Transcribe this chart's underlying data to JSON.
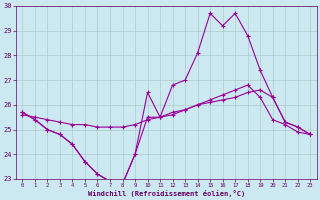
{
  "xlabel": "Windchill (Refroidissement éolien,°C)",
  "bg_color": "#cce8f0",
  "grid_color": "#aacccc",
  "line_color": "#990099",
  "xlim": [
    -0.5,
    23.5
  ],
  "ylim": [
    23,
    30
  ],
  "yticks": [
    23,
    24,
    25,
    26,
    27,
    28,
    29,
    30
  ],
  "xticks": [
    0,
    1,
    2,
    3,
    4,
    5,
    6,
    7,
    8,
    9,
    10,
    11,
    12,
    13,
    14,
    15,
    16,
    17,
    18,
    19,
    20,
    21,
    22,
    23
  ],
  "line1_y": [
    25.7,
    25.4,
    25.0,
    24.8,
    24.4,
    23.7,
    23.2,
    22.9,
    22.8,
    24.0,
    25.5,
    25.5,
    25.6,
    25.8,
    26.0,
    26.2,
    26.4,
    26.6,
    26.8,
    26.3,
    25.4,
    25.2,
    24.9,
    24.8
  ],
  "line2_y": [
    25.6,
    25.5,
    25.4,
    25.3,
    25.2,
    25.2,
    25.1,
    25.1,
    25.1,
    25.2,
    25.4,
    25.5,
    25.7,
    25.8,
    26.0,
    26.1,
    26.2,
    26.3,
    26.5,
    26.6,
    26.3,
    25.3,
    25.1,
    24.8
  ],
  "line3_y": [
    25.7,
    25.4,
    25.0,
    24.8,
    24.4,
    23.7,
    23.2,
    22.9,
    22.8,
    24.0,
    26.5,
    25.5,
    26.8,
    27.0,
    28.1,
    29.7,
    29.2,
    29.7,
    28.8,
    27.4,
    26.3,
    25.3,
    25.1,
    24.8
  ],
  "marker": "+",
  "markersize": 3,
  "linewidth": 0.8
}
